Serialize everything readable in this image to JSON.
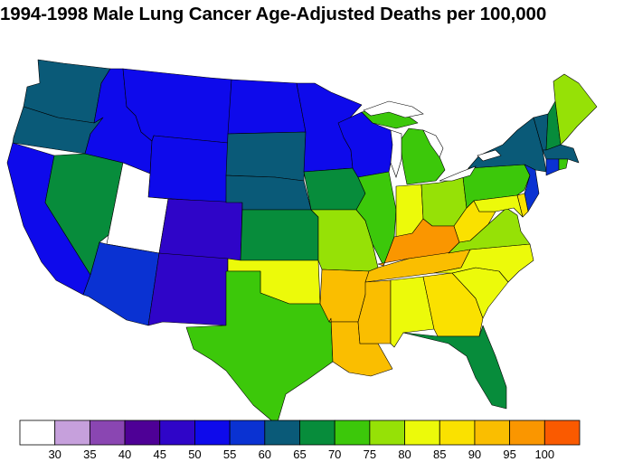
{
  "title": "1994-1998 Male Lung Cancer Age-Adjusted Deaths per 100,000",
  "legend": {
    "colors": [
      "#ffffff",
      "#c6a0dc",
      "#8a46b2",
      "#4e0096",
      "#2f05c8",
      "#0e0aeb",
      "#0a32d2",
      "#0a5a78",
      "#078c3b",
      "#3cc80a",
      "#96e106",
      "#ecfa0a",
      "#fae100",
      "#fabe00",
      "#fa9600",
      "#fa5a00"
    ],
    "labels": [
      "30",
      "35",
      "40",
      "45",
      "50",
      "55",
      "60",
      "65",
      "70",
      "75",
      "80",
      "85",
      "90",
      "95",
      "100"
    ]
  },
  "states": [
    {
      "name": "WA",
      "color": "#0a5a78"
    },
    {
      "name": "OR",
      "color": "#0a5a78"
    },
    {
      "name": "CA",
      "color": "#0e0aeb"
    },
    {
      "name": "NV",
      "color": "#078c3b"
    },
    {
      "name": "ID",
      "color": "#0e0aeb"
    },
    {
      "name": "MT",
      "color": "#0e0aeb"
    },
    {
      "name": "WY",
      "color": "#0e0aeb"
    },
    {
      "name": "UT",
      "color": "#ffffff"
    },
    {
      "name": "CO",
      "color": "#2f05c8"
    },
    {
      "name": "AZ",
      "color": "#0a32d2"
    },
    {
      "name": "NM",
      "color": "#2f05c8"
    },
    {
      "name": "ND",
      "color": "#0e0aeb"
    },
    {
      "name": "SD",
      "color": "#0a5a78"
    },
    {
      "name": "NE",
      "color": "#0a5a78"
    },
    {
      "name": "KS",
      "color": "#078c3b"
    },
    {
      "name": "OK",
      "color": "#ecfa0a"
    },
    {
      "name": "TX",
      "color": "#3cc80a"
    },
    {
      "name": "MN",
      "color": "#0e0aeb"
    },
    {
      "name": "IA",
      "color": "#078c3b"
    },
    {
      "name": "MO",
      "color": "#96e106"
    },
    {
      "name": "AR",
      "color": "#fabe00"
    },
    {
      "name": "LA",
      "color": "#fabe00"
    },
    {
      "name": "WI",
      "color": "#0e0aeb"
    },
    {
      "name": "IL",
      "color": "#3cc80a"
    },
    {
      "name": "MI",
      "color": "#3cc80a"
    },
    {
      "name": "IN",
      "color": "#ecfa0a"
    },
    {
      "name": "OH",
      "color": "#96e106"
    },
    {
      "name": "KY",
      "color": "#fa9600"
    },
    {
      "name": "TN",
      "color": "#fabe00"
    },
    {
      "name": "MS",
      "color": "#fabe00"
    },
    {
      "name": "AL",
      "color": "#ecfa0a"
    },
    {
      "name": "GA",
      "color": "#fae100"
    },
    {
      "name": "FL",
      "color": "#078c3b"
    },
    {
      "name": "SC",
      "color": "#ecfa0a"
    },
    {
      "name": "NC",
      "color": "#ecfa0a"
    },
    {
      "name": "VA",
      "color": "#96e106"
    },
    {
      "name": "WV",
      "color": "#fae100"
    },
    {
      "name": "PA",
      "color": "#3cc80a"
    },
    {
      "name": "NY",
      "color": "#0a5a78"
    },
    {
      "name": "VT",
      "color": "#0a5a78"
    },
    {
      "name": "NH",
      "color": "#078c3b"
    },
    {
      "name": "ME",
      "color": "#96e106"
    },
    {
      "name": "MA",
      "color": "#0a5a78"
    },
    {
      "name": "CT",
      "color": "#0a32d2"
    },
    {
      "name": "RI",
      "color": "#3cc80a"
    },
    {
      "name": "NJ",
      "color": "#0a32d2"
    },
    {
      "name": "DE",
      "color": "#fae100"
    },
    {
      "name": "MD",
      "color": "#ecfa0a"
    }
  ]
}
